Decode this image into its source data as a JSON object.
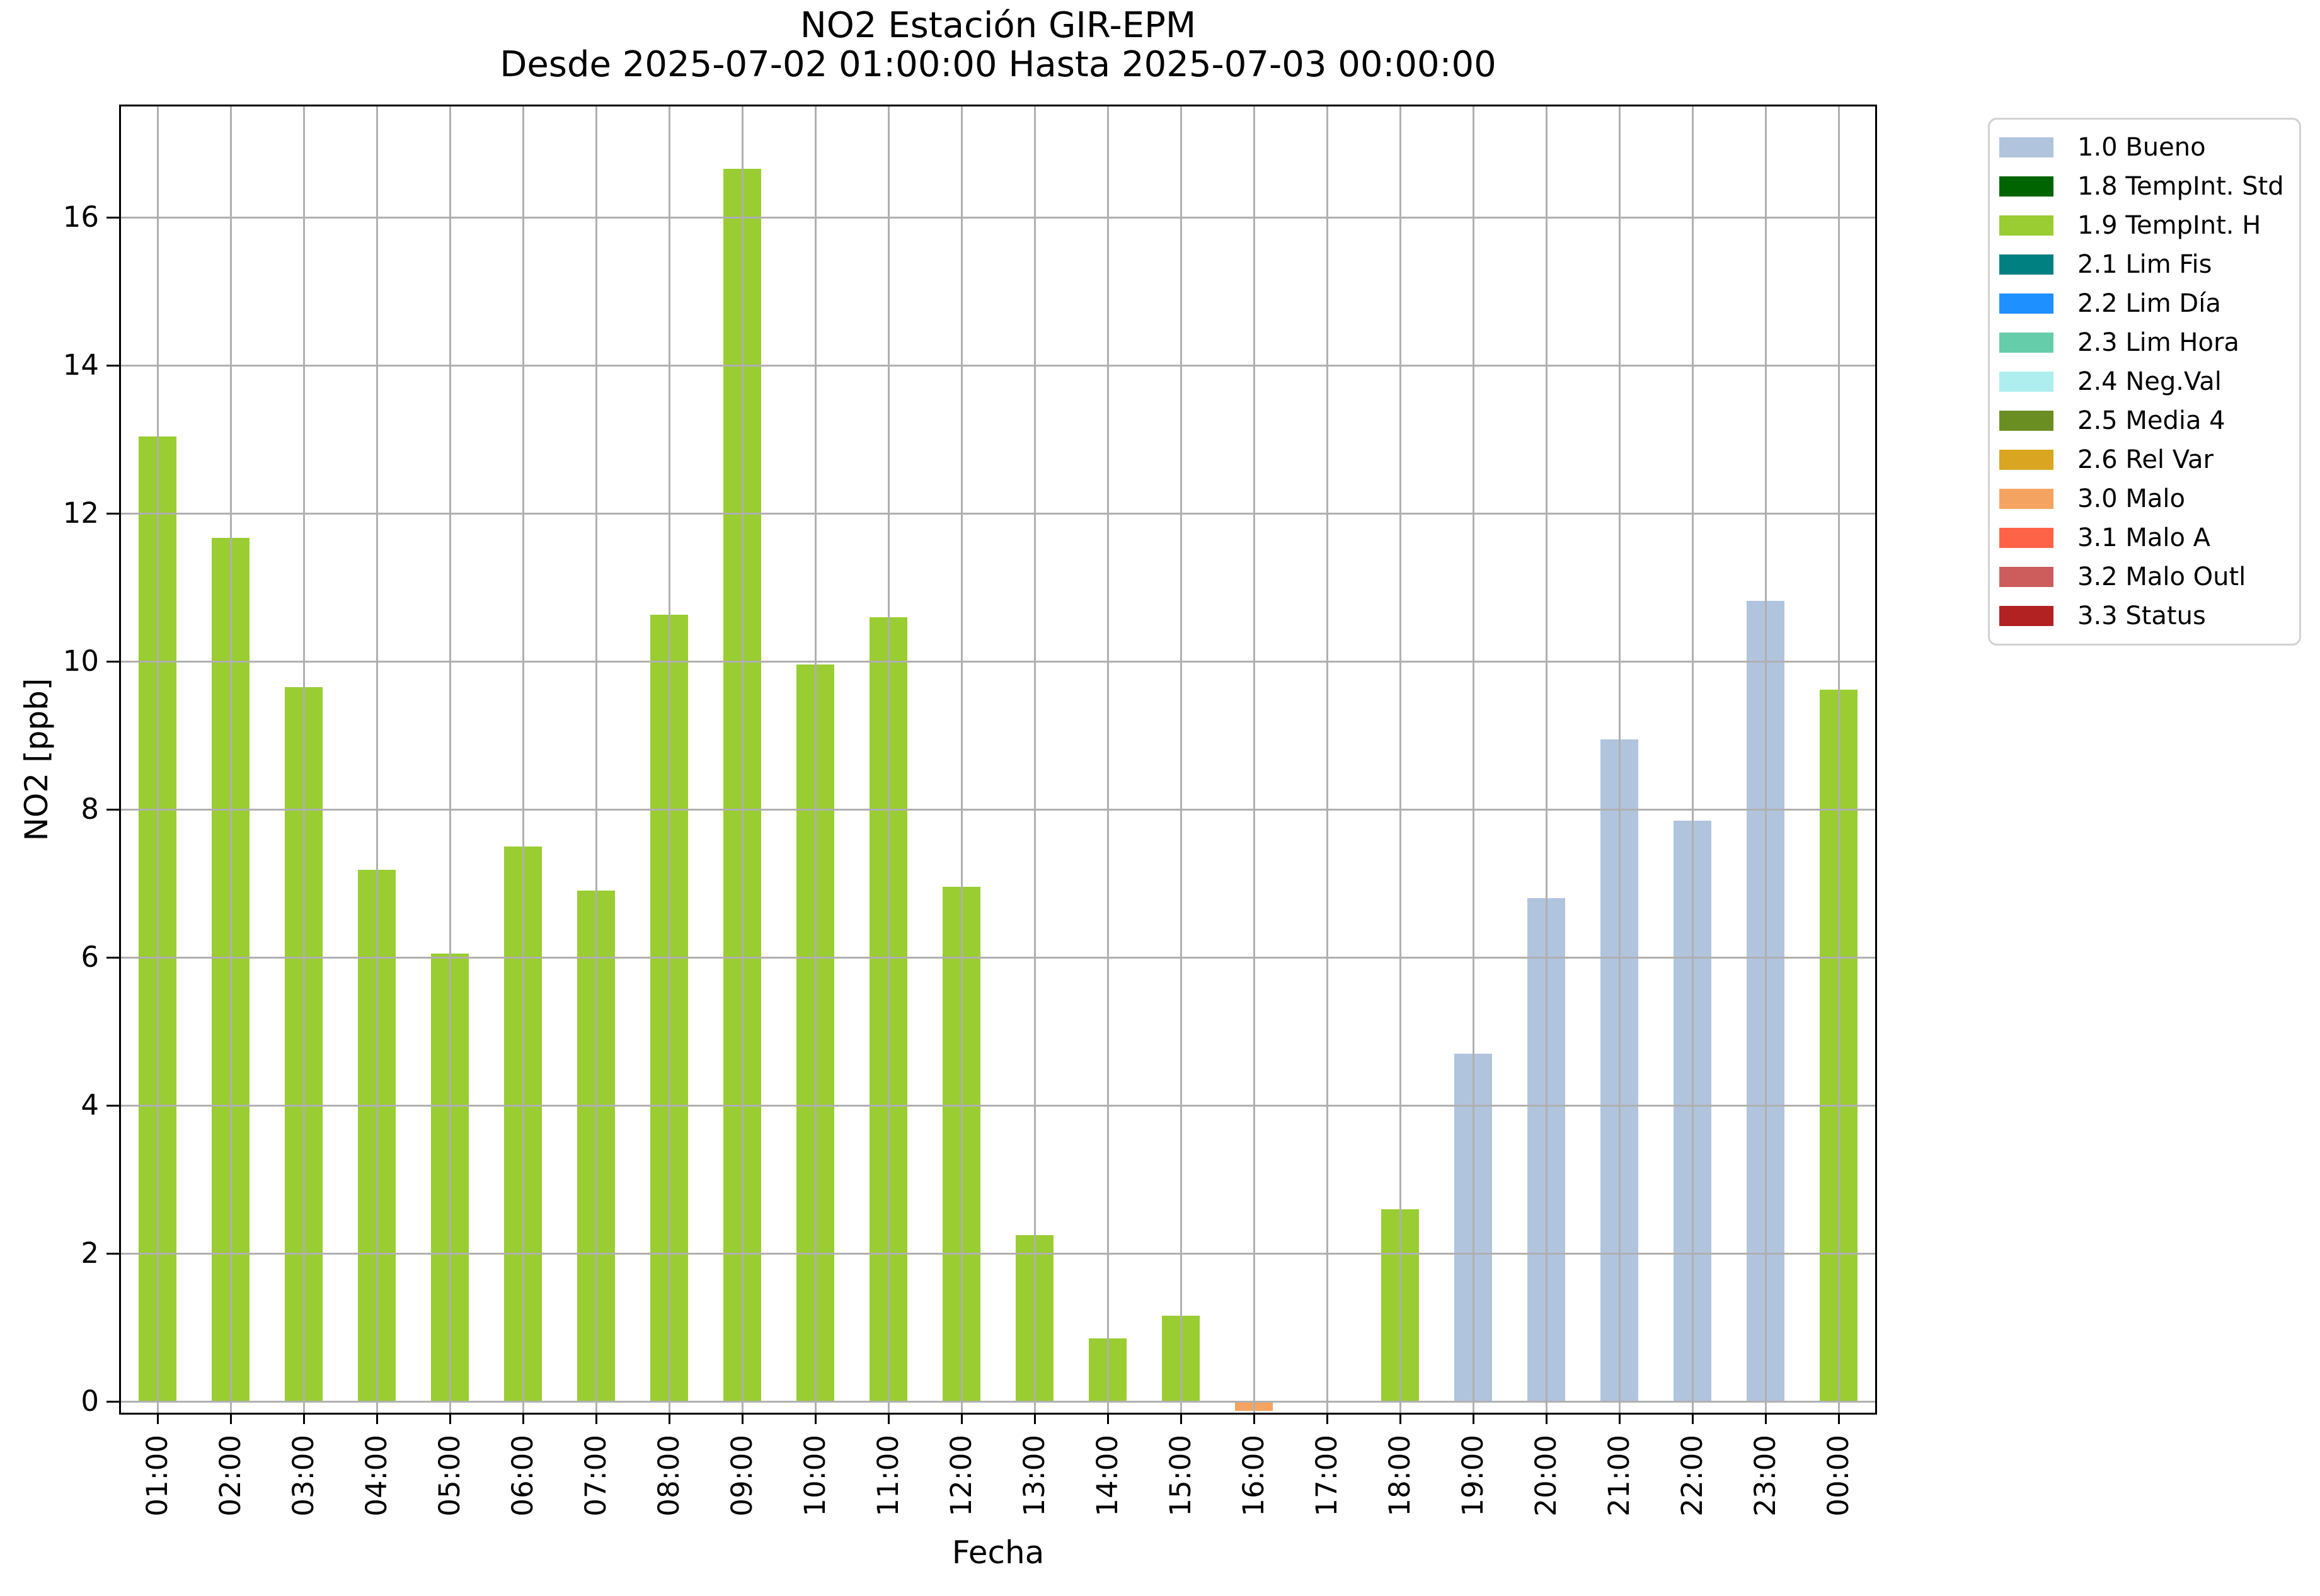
{
  "chart_data": {
    "type": "bar",
    "title": "NO2 Estación GIR-EPM",
    "subtitle": "Desde 2025-07-02 01:00:00 Hasta 2025-07-03 00:00:00",
    "xlabel": "Fecha",
    "ylabel": "NO2 [ppb]",
    "yticks": [
      0,
      2,
      4,
      6,
      8,
      10,
      12,
      14,
      16
    ],
    "ylim": [
      -0.153,
      17.5
    ],
    "grid": true,
    "legend_position": "outside-upper-right",
    "grid_color": "#b0b0b0",
    "categories": [
      "01:00",
      "02:00",
      "03:00",
      "04:00",
      "05:00",
      "06:00",
      "07:00",
      "08:00",
      "09:00",
      "10:00",
      "11:00",
      "12:00",
      "13:00",
      "14:00",
      "15:00",
      "16:00",
      "17:00",
      "18:00",
      "19:00",
      "20:00",
      "21:00",
      "22:00",
      "23:00",
      "00:00"
    ],
    "bars": [
      {
        "x": "01:00",
        "value": 13.04,
        "flag": "1.9 TempInt. H"
      },
      {
        "x": "02:00",
        "value": 11.67,
        "flag": "1.9 TempInt. H"
      },
      {
        "x": "03:00",
        "value": 9.65,
        "flag": "1.9 TempInt. H"
      },
      {
        "x": "04:00",
        "value": 7.18,
        "flag": "1.9 TempInt. H"
      },
      {
        "x": "05:00",
        "value": 6.05,
        "flag": "1.9 TempInt. H"
      },
      {
        "x": "06:00",
        "value": 7.5,
        "flag": "1.9 TempInt. H"
      },
      {
        "x": "07:00",
        "value": 6.9,
        "flag": "1.9 TempInt. H"
      },
      {
        "x": "08:00",
        "value": 10.63,
        "flag": "1.9 TempInt. H"
      },
      {
        "x": "09:00",
        "value": 16.66,
        "flag": "1.9 TempInt. H"
      },
      {
        "x": "10:00",
        "value": 9.96,
        "flag": "1.9 TempInt. H"
      },
      {
        "x": "11:00",
        "value": 10.6,
        "flag": "1.9 TempInt. H"
      },
      {
        "x": "12:00",
        "value": 6.95,
        "flag": "1.9 TempInt. H"
      },
      {
        "x": "13:00",
        "value": 2.25,
        "flag": "1.9 TempInt. H"
      },
      {
        "x": "14:00",
        "value": 0.85,
        "flag": "1.9 TempInt. H"
      },
      {
        "x": "15:00",
        "value": 1.16,
        "flag": "1.9 TempInt. H"
      },
      {
        "x": "16:00",
        "value": -0.13,
        "flag": "3.0 Malo"
      },
      {
        "x": "17:00",
        "value": -0.02,
        "flag": "3.0 Malo"
      },
      {
        "x": "18:00",
        "value": 2.6,
        "flag": "1.9 TempInt. H"
      },
      {
        "x": "19:00",
        "value": 4.7,
        "flag": "1.0 Bueno"
      },
      {
        "x": "20:00",
        "value": 6.8,
        "flag": "1.0 Bueno"
      },
      {
        "x": "21:00",
        "value": 8.95,
        "flag": "1.0 Bueno"
      },
      {
        "x": "22:00",
        "value": 7.85,
        "flag": "1.0 Bueno"
      },
      {
        "x": "23:00",
        "value": 10.82,
        "flag": "1.0 Bueno"
      },
      {
        "x": "00:00",
        "value": 9.62,
        "flag": "1.9 TempInt. H"
      }
    ],
    "legend": [
      {
        "label": "1.0 Bueno",
        "color": "#b0c4de"
      },
      {
        "label": "1.8 TempInt. Std",
        "color": "#006400"
      },
      {
        "label": "1.9 TempInt. H",
        "color": "#9acd32"
      },
      {
        "label": "2.1 Lim Fis",
        "color": "#008080"
      },
      {
        "label": "2.2 Lim Día",
        "color": "#1e90ff"
      },
      {
        "label": "2.3 Lim Hora",
        "color": "#66cdaa"
      },
      {
        "label": "2.4 Neg.Val",
        "color": "#afeeee"
      },
      {
        "label": "2.5 Media 4",
        "color": "#6b8e23"
      },
      {
        "label": "2.6 Rel Var",
        "color": "#daa520"
      },
      {
        "label": "3.0 Malo",
        "color": "#f4a460"
      },
      {
        "label": "3.1 Malo A",
        "color": "#ff6347"
      },
      {
        "label": "3.2 Malo Outl",
        "color": "#cd5c5c"
      },
      {
        "label": "3.3 Status",
        "color": "#b22222"
      }
    ]
  }
}
